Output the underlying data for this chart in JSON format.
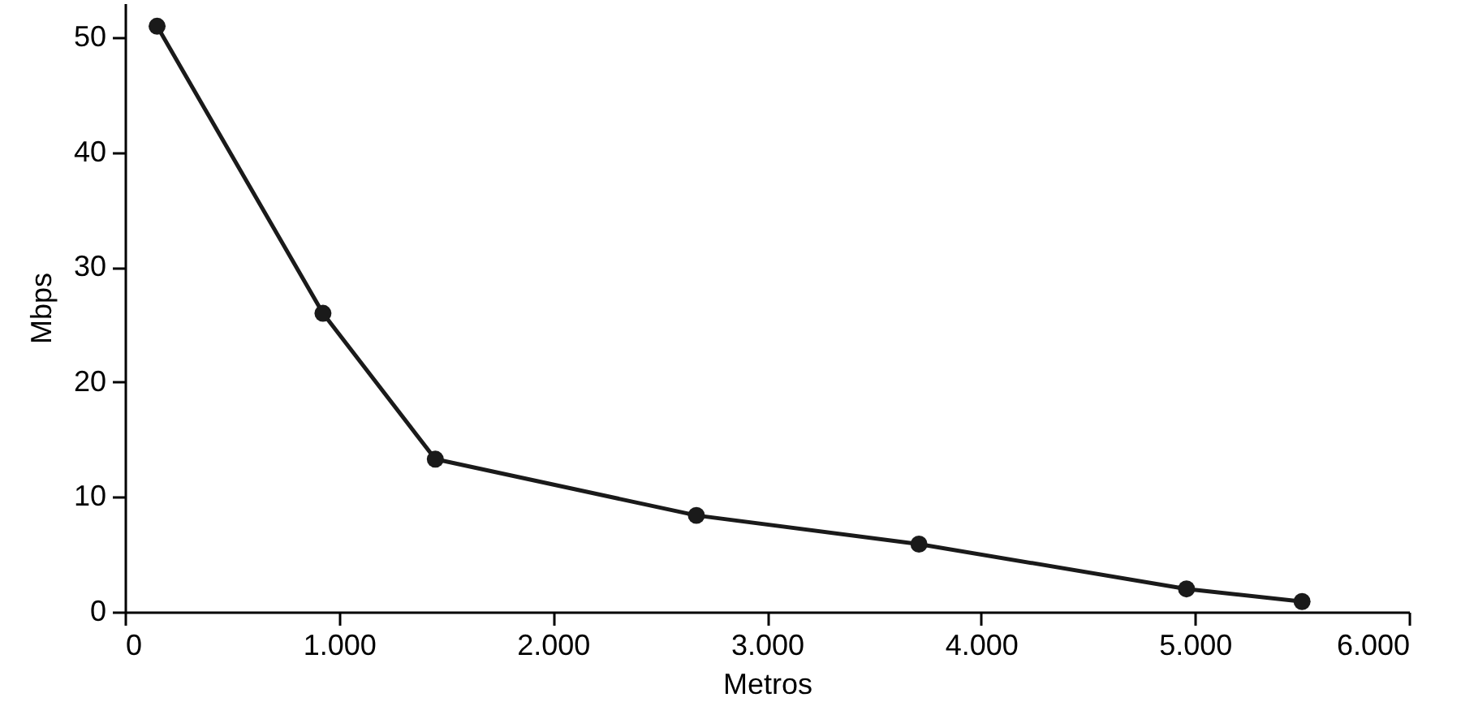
{
  "chart_data": {
    "type": "line",
    "xlabel": "Metros",
    "ylabel": "Mbps",
    "x": [
      150,
      925,
      1450,
      2670,
      3710,
      4960,
      5500
    ],
    "series": [
      {
        "color": "#1a1a1a",
        "values": [
          51,
          26,
          13.3,
          8.4,
          5.9,
          2,
          0.9
        ]
      }
    ],
    "xlim": [
      0,
      6000
    ],
    "ylim": [
      0,
      53
    ],
    "xticks": [
      0,
      {
        "value": 1000,
        "label": "1.000"
      },
      {
        "value": 2000,
        "label": "2.000"
      },
      {
        "value": 3000,
        "label": "3.000"
      },
      {
        "value": 4000,
        "label": "4.000"
      },
      {
        "value": 5000,
        "label": "5.000"
      },
      {
        "value": 6000,
        "label": "6.000"
      }
    ],
    "yticks": [
      0,
      10,
      20,
      30,
      40,
      50
    ],
    "grid": false,
    "legend": false,
    "marker": "circle",
    "line_style": "solid"
  }
}
